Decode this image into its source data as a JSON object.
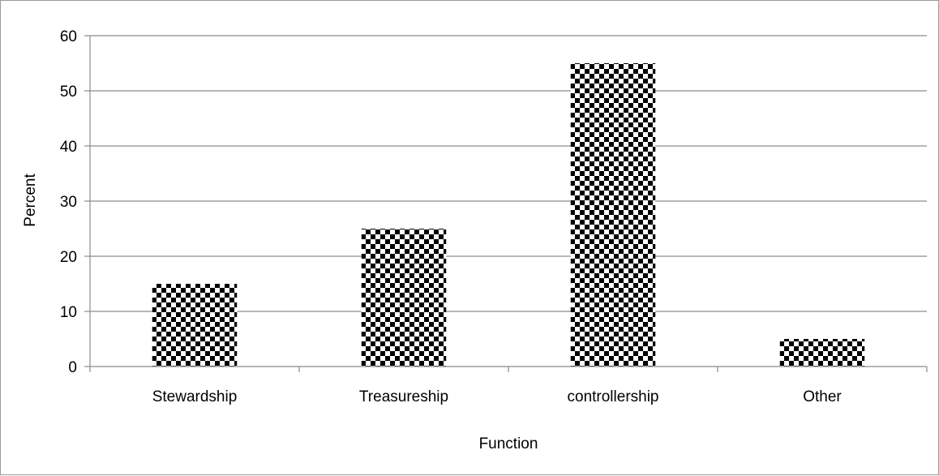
{
  "chart_data": {
    "type": "bar",
    "title": "",
    "xlabel": "Function",
    "ylabel": "Percent",
    "categories": [
      "Stewardship",
      "Treasureship",
      "controllership",
      "Other"
    ],
    "values": [
      15,
      25,
      55,
      5
    ],
    "ylim": [
      0,
      60
    ],
    "yticks": [
      0,
      10,
      20,
      30,
      40,
      50,
      60
    ],
    "grid": true,
    "legend": "none",
    "bar_fill": "black-and-white checkerboard pattern"
  }
}
